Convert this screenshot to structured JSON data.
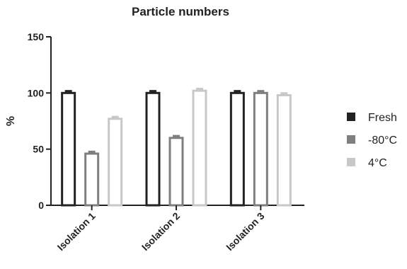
{
  "chart_data": {
    "type": "bar",
    "title": "Particle numbers",
    "ylabel": "%",
    "xlabel": "",
    "ylim": [
      0,
      150
    ],
    "yticks": [
      0,
      50,
      100,
      150
    ],
    "categories": [
      "Isolation 1",
      "Isolation 2",
      "Isolation 3"
    ],
    "series": [
      {
        "name": "Fresh",
        "color": "#222222",
        "values": [
          100,
          100,
          100
        ],
        "errors": [
          2,
          2,
          2
        ]
      },
      {
        "name": "-80°C",
        "color": "#7f7f7f",
        "values": [
          46,
          60,
          100
        ],
        "errors": [
          2,
          2,
          2
        ]
      },
      {
        "name": "4°C",
        "color": "#c8c8c8",
        "values": [
          77,
          102,
          98
        ],
        "errors": [
          2,
          2,
          2
        ]
      }
    ],
    "legend": "right",
    "grid": false
  }
}
